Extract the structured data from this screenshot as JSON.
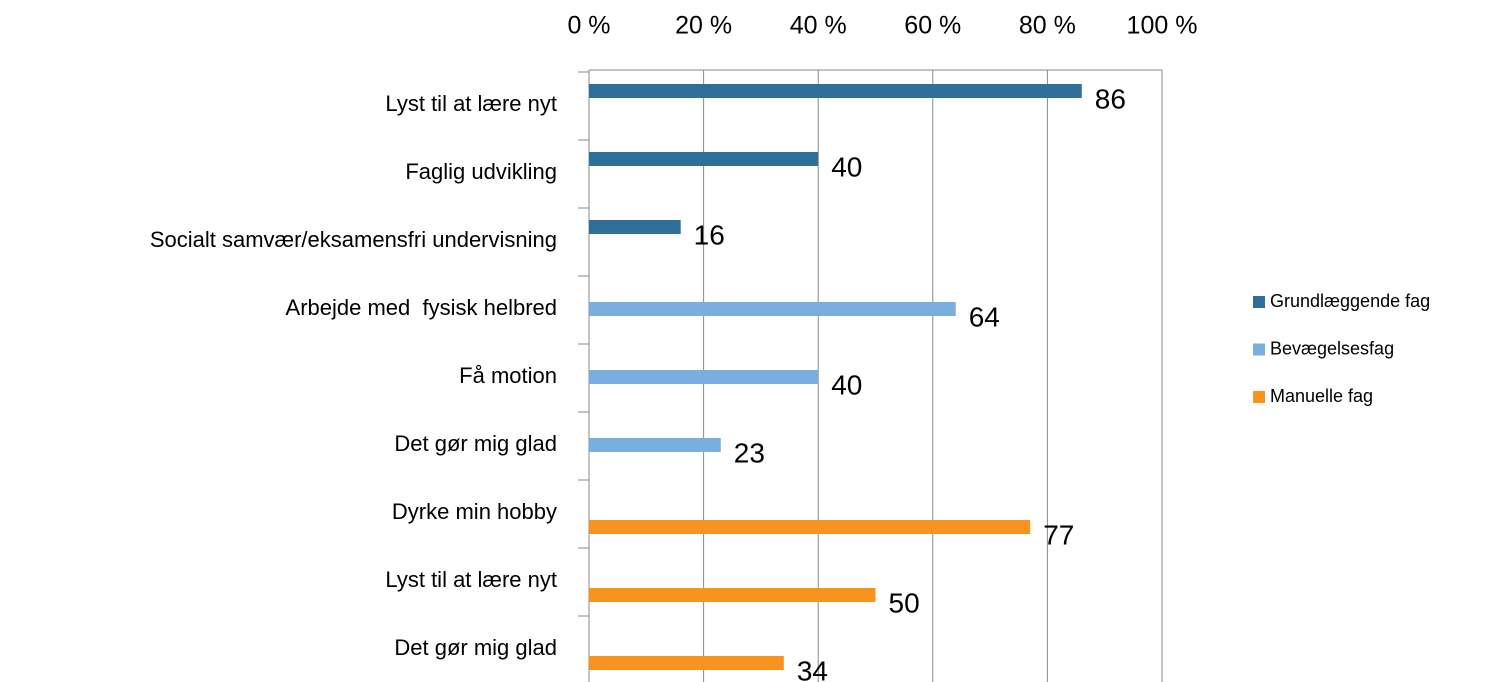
{
  "chart_data": {
    "type": "bar",
    "orientation": "horizontal",
    "categories": [
      "Lyst til at lære nyt",
      "Faglig udvikling",
      "Socialt samvær/eksamensfri undervisning",
      "Arbejde med  fysisk helbred",
      "Få motion",
      "Det gør mig glad",
      "Dyrke min hobby",
      "Lyst til at lære nyt",
      "Det gør mig glad"
    ],
    "series": [
      {
        "name": "Grundlæggende fag",
        "color": "#2e6e99",
        "values": [
          86,
          40,
          16,
          null,
          null,
          null,
          null,
          null,
          null
        ]
      },
      {
        "name": "Bevægelsesfag",
        "color": "#7aaede",
        "values": [
          null,
          null,
          null,
          64,
          40,
          23,
          null,
          null,
          null
        ]
      },
      {
        "name": "Manuelle fag",
        "color": "#f7931e",
        "values": [
          null,
          null,
          null,
          null,
          null,
          null,
          77,
          50,
          34
        ]
      }
    ],
    "xlim": [
      0,
      100
    ],
    "xticks": [
      {
        "value": 0,
        "label": "0 %"
      },
      {
        "value": 20,
        "label": "20 %"
      },
      {
        "value": 40,
        "label": "40 %"
      },
      {
        "value": 60,
        "label": "60 %"
      },
      {
        "value": 80,
        "label": "80 %"
      },
      {
        "value": 100,
        "label": "100 %"
      }
    ],
    "grid": true,
    "legend": "right"
  }
}
